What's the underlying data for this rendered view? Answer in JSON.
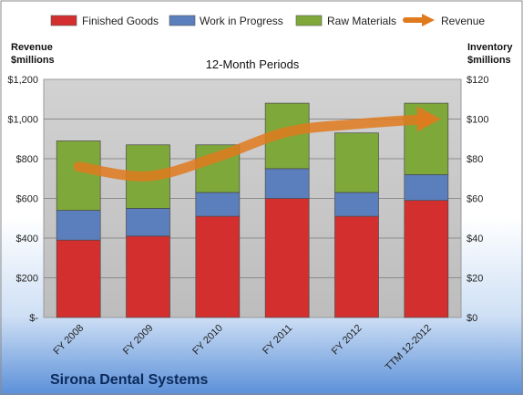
{
  "legend": {
    "finished_goods": "Finished Goods",
    "wip": "Work in Progress",
    "raw_materials": "Raw Materials",
    "revenue": "Revenue"
  },
  "left_axis_title": [
    "Revenue",
    "$millions"
  ],
  "right_axis_title": [
    "Inventory",
    "$millions"
  ],
  "subtitle": "12-Month Periods",
  "company": "Sirona Dental Systems",
  "colors": {
    "finished_goods": "#d42f2f",
    "wip": "#5b7fbd",
    "raw_materials": "#7fa83b",
    "revenue": "#e07a1f",
    "plot_bg": "#c8c8c8"
  },
  "chart_data": {
    "type": "bar",
    "stacked": true,
    "categories": [
      "FY 2008",
      "FY 2009",
      "FY 2010",
      "FY 2011",
      "FY 2012",
      "TTM 12-2012"
    ],
    "series": [
      {
        "name": "Finished Goods",
        "axis": "right",
        "values": [
          39,
          41,
          51,
          60,
          51,
          59
        ]
      },
      {
        "name": "Work in Progress",
        "axis": "right",
        "values": [
          15,
          14,
          12,
          15,
          12,
          13
        ]
      },
      {
        "name": "Raw Materials",
        "axis": "right",
        "values": [
          35,
          32,
          24,
          33,
          30,
          36
        ]
      },
      {
        "name": "Revenue",
        "axis": "left",
        "type": "line",
        "values": [
          760,
          712,
          810,
          935,
          975,
          1000
        ]
      }
    ],
    "left_axis": {
      "ylim": [
        0,
        1200
      ],
      "ticks": [
        0,
        200,
        400,
        600,
        800,
        1000,
        1200
      ],
      "tick_labels": [
        "$-",
        "$200",
        "$400",
        "$600",
        "$800",
        "$1,000",
        "$1,200"
      ]
    },
    "right_axis": {
      "ylim": [
        0,
        120
      ],
      "ticks": [
        0,
        20,
        40,
        60,
        80,
        100,
        120
      ],
      "tick_labels": [
        "$0",
        "$20",
        "$40",
        "$60",
        "$80",
        "$100",
        "$120"
      ]
    },
    "grid": true,
    "legend_position": "top"
  }
}
